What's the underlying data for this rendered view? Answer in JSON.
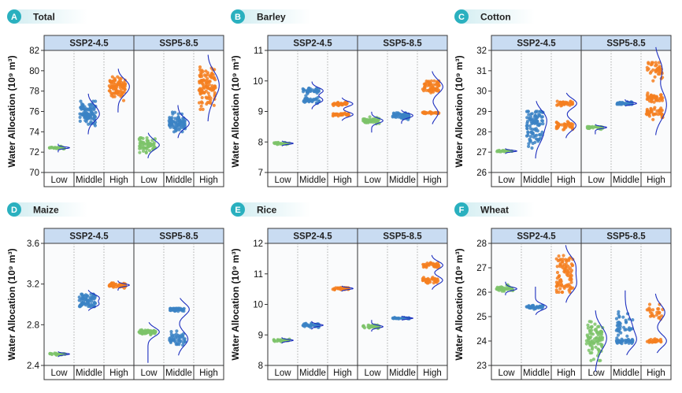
{
  "figure": {
    "panels": [
      {
        "letter": "A",
        "title": "Total",
        "ylabel": "Water Allocation (10⁹ m³)",
        "yticks": [
          "82",
          "80",
          "78",
          "76",
          "74",
          "72",
          "70"
        ],
        "ylim": [
          70,
          82
        ],
        "facets": [
          "SSP2-4.5",
          "SSP5-8.5"
        ],
        "categories": [
          "Low",
          "Middle",
          "High"
        ],
        "groups": [
          [
            {
              "cat": "Low",
              "clusters": [
                [
                  72.45,
                  0.08
                ]
              ],
              "range": [
                72.2,
                72.6
              ],
              "n": 30
            },
            {
              "cat": "Middle",
              "clusters": [
                [
                  75.8,
                  0.6
                ]
              ],
              "range": [
                74.5,
                77.0
              ],
              "n": 90
            },
            {
              "cat": "High",
              "clusters": [
                [
                  78.4,
                  0.55
                ]
              ],
              "range": [
                76.7,
                79.4
              ],
              "n": 90
            }
          ],
          [
            {
              "cat": "Low",
              "clusters": [
                [
                  72.7,
                  0.35
                ]
              ],
              "range": [
                71.9,
                73.4
              ],
              "n": 60
            },
            {
              "cat": "Middle",
              "clusters": [
                [
                  75.0,
                  0.45
                ]
              ],
              "range": [
                74.0,
                76.0
              ],
              "n": 80
            },
            {
              "cat": "High",
              "clusters": [
                [
                  78.5,
                  0.9
                ]
              ],
              "range": [
                76.2,
                80.4
              ],
              "n": 110
            }
          ]
        ]
      },
      {
        "letter": "B",
        "title": "Barley",
        "ylabel": "Water Allocation (10⁹ m³)",
        "yticks": [
          "11",
          "10",
          "9",
          "8",
          "7"
        ],
        "ylim": [
          7,
          11
        ],
        "facets": [
          "SSP2-4.5",
          "SSP5-8.5"
        ],
        "categories": [
          "Low",
          "Middle",
          "High"
        ],
        "groups": [
          [
            {
              "cat": "Low",
              "clusters": [
                [
                  7.95,
                  0.02
                ]
              ],
              "range": [
                7.92,
                7.98
              ],
              "n": 25
            },
            {
              "cat": "Middle",
              "clusters": [
                [
                  9.68,
                  0.05
                ],
                [
                  9.35,
                  0.05
                ]
              ],
              "range": [
                9.25,
                9.8
              ],
              "n": 70
            },
            {
              "cat": "High",
              "clusters": [
                [
                  9.25,
                  0.03
                ],
                [
                  8.9,
                  0.02
                ]
              ],
              "range": [
                8.85,
                9.3
              ],
              "n": 70
            }
          ],
          [
            {
              "cat": "Low",
              "clusters": [
                [
                  8.7,
                  0.05
                ]
              ],
              "range": [
                8.45,
                8.85
              ],
              "n": 50
            },
            {
              "cat": "Middle",
              "clusters": [
                [
                  8.85,
                  0.05
                ]
              ],
              "range": [
                8.7,
                8.95
              ],
              "n": 50
            },
            {
              "cat": "High",
              "clusters": [
                [
                  9.9,
                  0.06
                ],
                [
                  9.7,
                  0.05
                ],
                [
                  8.95,
                  0.02
                ]
              ],
              "range": [
                8.9,
                10.0
              ],
              "n": 90
            }
          ]
        ]
      },
      {
        "letter": "C",
        "title": "Cotton",
        "ylabel": "Water Allocation (10⁹ m³)",
        "yticks": [
          "32",
          "31",
          "30",
          "29",
          "28",
          "27",
          "26"
        ],
        "ylim": [
          26,
          32
        ],
        "facets": [
          "SSP2-4.5",
          "SSP5-8.5"
        ],
        "categories": [
          "Low",
          "Middle",
          "High"
        ],
        "groups": [
          [
            {
              "cat": "Low",
              "clusters": [
                [
                  27.05,
                  0.02
                ]
              ],
              "range": [
                27.0,
                27.1
              ],
              "n": 25
            },
            {
              "cat": "Middle",
              "clusters": [
                [
                  28.3,
                  0.55
                ]
              ],
              "range": [
                27.2,
                29.0
              ],
              "n": 100
            },
            {
              "cat": "High",
              "clusters": [
                [
                  29.4,
                  0.05
                ],
                [
                  28.3,
                  0.12
                ]
              ],
              "range": [
                28.1,
                29.5
              ],
              "n": 80
            }
          ],
          [
            {
              "cat": "Low",
              "clusters": [
                [
                  28.2,
                  0.04
                ]
              ],
              "range": [
                28.0,
                28.25
              ],
              "n": 30
            },
            {
              "cat": "Middle",
              "clusters": [
                [
                  29.4,
                  0.04
                ]
              ],
              "range": [
                29.35,
                29.5
              ],
              "n": 40
            },
            {
              "cat": "High",
              "clusters": [
                [
                  31.1,
                  0.25
                ],
                [
                  29.7,
                  0.1
                ],
                [
                  28.9,
                  0.15
                ]
              ],
              "range": [
                28.6,
                31.4
              ],
              "n": 120
            }
          ]
        ]
      },
      {
        "letter": "D",
        "title": "Maize",
        "ylabel": "Water Allocation (10⁹ m³)",
        "yticks": [
          "3.6",
          "3.2",
          "2.8",
          "2.4"
        ],
        "ylim": [
          2.4,
          3.6
        ],
        "facets": [
          "SSP2-4.5",
          "SSP5-8.5"
        ],
        "categories": [
          "Low",
          "Middle",
          "High"
        ],
        "groups": [
          [
            {
              "cat": "Low",
              "clusters": [
                [
                  2.51,
                  0.005
                ]
              ],
              "range": [
                2.5,
                2.52
              ],
              "n": 25
            },
            {
              "cat": "Middle",
              "clusters": [
                [
                  3.07,
                  0.02
                ],
                [
                  3.0,
                  0.02
                ]
              ],
              "range": [
                2.98,
                3.1
              ],
              "n": 70
            },
            {
              "cat": "High",
              "clusters": [
                [
                  3.19,
                  0.01
                ]
              ],
              "range": [
                3.16,
                3.21
              ],
              "n": 60
            }
          ],
          [
            {
              "cat": "Low",
              "clusters": [
                [
                  2.73,
                  0.01
                ]
              ],
              "range": [
                2.5,
                2.75
              ],
              "n": 60
            },
            {
              "cat": "Middle",
              "clusters": [
                [
                  2.95,
                  0.01
                ],
                [
                  2.66,
                  0.03
                ]
              ],
              "range": [
                2.6,
                2.96
              ],
              "n": 90
            },
            {
              "cat": "High",
              "clusters": [],
              "range": [
                2.4,
                2.4
              ],
              "n": 0
            }
          ]
        ]
      },
      {
        "letter": "E",
        "title": "Rice",
        "ylabel": "Water Allocation (10⁹ m³)",
        "yticks": [
          "12",
          "11",
          "10",
          "9",
          "8"
        ],
        "ylim": [
          8,
          12
        ],
        "facets": [
          "SSP2-4.5",
          "SSP5-8.5"
        ],
        "categories": [
          "Low",
          "Middle",
          "High"
        ],
        "groups": [
          [
            {
              "cat": "Low",
              "clusters": [
                [
                  8.82,
                  0.02
                ]
              ],
              "range": [
                8.78,
                8.86
              ],
              "n": 30
            },
            {
              "cat": "Middle",
              "clusters": [
                [
                  9.32,
                  0.03
                ]
              ],
              "range": [
                9.25,
                9.38
              ],
              "n": 40
            },
            {
              "cat": "High",
              "clusters": [
                [
                  10.52,
                  0.02
                ]
              ],
              "range": [
                10.48,
                10.55
              ],
              "n": 35
            }
          ],
          [
            {
              "cat": "Low",
              "clusters": [
                [
                  9.27,
                  0.03
                ]
              ],
              "range": [
                9.2,
                9.4
              ],
              "n": 35
            },
            {
              "cat": "Middle",
              "clusters": [
                [
                  9.55,
                  0.01
                ]
              ],
              "range": [
                9.53,
                9.57
              ],
              "n": 30
            },
            {
              "cat": "High",
              "clusters": [
                [
                  11.3,
                  0.04
                ],
                [
                  10.8,
                  0.05
                ]
              ],
              "range": [
                10.7,
                11.4
              ],
              "n": 70
            }
          ]
        ]
      },
      {
        "letter": "F",
        "title": "Wheat",
        "ylabel": "Water Allocation (10⁹ m³)",
        "yticks": [
          "28",
          "27",
          "26",
          "25",
          "24",
          "23"
        ],
        "ylim": [
          23,
          28
        ],
        "facets": [
          "SSP2-4.5",
          "SSP5-8.5"
        ],
        "categories": [
          "Low",
          "Middle",
          "High"
        ],
        "groups": [
          [
            {
              "cat": "Low",
              "clusters": [
                [
                  26.15,
                  0.05
                ]
              ],
              "range": [
                26.0,
                26.3
              ],
              "n": 45
            },
            {
              "cat": "Middle",
              "clusters": [
                [
                  25.4,
                  0.03
                ]
              ],
              "range": [
                25.3,
                26.0
              ],
              "n": 40
            },
            {
              "cat": "High",
              "clusters": [
                [
                  26.3,
                  0.2
                ],
                [
                  27.1,
                  0.25
                ]
              ],
              "range": [
                26.0,
                27.5
              ],
              "n": 90
            }
          ],
          [
            {
              "cat": "Low",
              "clusters": [
                [
                  24.0,
                  0.35
                ]
              ],
              "range": [
                23.2,
                24.8
              ],
              "n": 90
            },
            {
              "cat": "Middle",
              "clusters": [
                [
                  24.6,
                  0.3
                ],
                [
                  24.0,
                  0.05
                ]
              ],
              "range": [
                23.9,
                25.6
              ],
              "n": 80
            },
            {
              "cat": "High",
              "clusters": [
                [
                  24.0,
                  0.04
                ],
                [
                  25.2,
                  0.2
                ]
              ],
              "range": [
                23.95,
                25.5
              ],
              "n": 50
            }
          ]
        ]
      }
    ]
  },
  "colors": {
    "Low": "#7cc36a",
    "Middle": "#3b82c4",
    "High": "#f57f20",
    "curve": "#1d2fbf",
    "facet_fill": "#c9dcf2",
    "facet_stroke": "#3a3a3a",
    "badge": "#2ab0bf",
    "title_grad_start": "#d4eef2",
    "plot_bg": "#fafbfc"
  },
  "chart_data": [
    {
      "type": "scatter",
      "title": "Total",
      "ylabel": "Water Allocation (10⁹ m³)",
      "ylim": [
        70,
        82
      ],
      "facets": [
        "SSP2-4.5",
        "SSP5-8.5"
      ],
      "categories": [
        "Low",
        "Middle",
        "High"
      ],
      "series": [
        {
          "name": "SSP2-4.5",
          "values": [
            72.45,
            75.8,
            78.4
          ]
        },
        {
          "name": "SSP5-8.5",
          "values": [
            72.7,
            75.0,
            78.5
          ]
        }
      ]
    },
    {
      "type": "scatter",
      "title": "Barley",
      "ylabel": "Water Allocation (10⁹ m³)",
      "ylim": [
        7,
        11
      ],
      "facets": [
        "SSP2-4.5",
        "SSP5-8.5"
      ],
      "categories": [
        "Low",
        "Middle",
        "High"
      ],
      "series": [
        {
          "name": "SSP2-4.5",
          "values": [
            7.95,
            9.65,
            9.1
          ]
        },
        {
          "name": "SSP5-8.5",
          "values": [
            8.7,
            8.85,
            9.85
          ]
        }
      ]
    },
    {
      "type": "scatter",
      "title": "Cotton",
      "ylabel": "Water Allocation (10⁹ m³)",
      "ylim": [
        26,
        32
      ],
      "facets": [
        "SSP2-4.5",
        "SSP5-8.5"
      ],
      "categories": [
        "Low",
        "Middle",
        "High"
      ],
      "series": [
        {
          "name": "SSP2-4.5",
          "values": [
            27.05,
            28.3,
            29.2
          ]
        },
        {
          "name": "SSP5-8.5",
          "values": [
            28.2,
            29.4,
            30.3
          ]
        }
      ]
    },
    {
      "type": "scatter",
      "title": "Maize",
      "ylabel": "Water Allocation (10⁹ m³)",
      "ylim": [
        2.4,
        3.6
      ],
      "facets": [
        "SSP2-4.5",
        "SSP5-8.5"
      ],
      "categories": [
        "Low",
        "Middle",
        "High"
      ],
      "series": [
        {
          "name": "SSP2-4.5",
          "values": [
            2.51,
            3.05,
            3.19
          ]
        },
        {
          "name": "SSP5-8.5",
          "values": [
            2.73,
            2.85,
            null
          ]
        }
      ]
    },
    {
      "type": "scatter",
      "title": "Rice",
      "ylabel": "Water Allocation (10⁹ m³)",
      "ylim": [
        8,
        12
      ],
      "facets": [
        "SSP2-4.5",
        "SSP5-8.5"
      ],
      "categories": [
        "Low",
        "Middle",
        "High"
      ],
      "series": [
        {
          "name": "SSP2-4.5",
          "values": [
            8.82,
            9.32,
            10.52
          ]
        },
        {
          "name": "SSP5-8.5",
          "values": [
            9.27,
            9.55,
            11.2
          ]
        }
      ]
    },
    {
      "type": "scatter",
      "title": "Wheat",
      "ylabel": "Water Allocation (10⁹ m³)",
      "ylim": [
        23,
        28
      ],
      "facets": [
        "SSP2-4.5",
        "SSP5-8.5"
      ],
      "categories": [
        "Low",
        "Middle",
        "High"
      ],
      "series": [
        {
          "name": "SSP2-4.5",
          "values": [
            26.15,
            25.4,
            26.6
          ]
        },
        {
          "name": "SSP5-8.5",
          "values": [
            24.0,
            24.4,
            24.5
          ]
        }
      ]
    }
  ]
}
